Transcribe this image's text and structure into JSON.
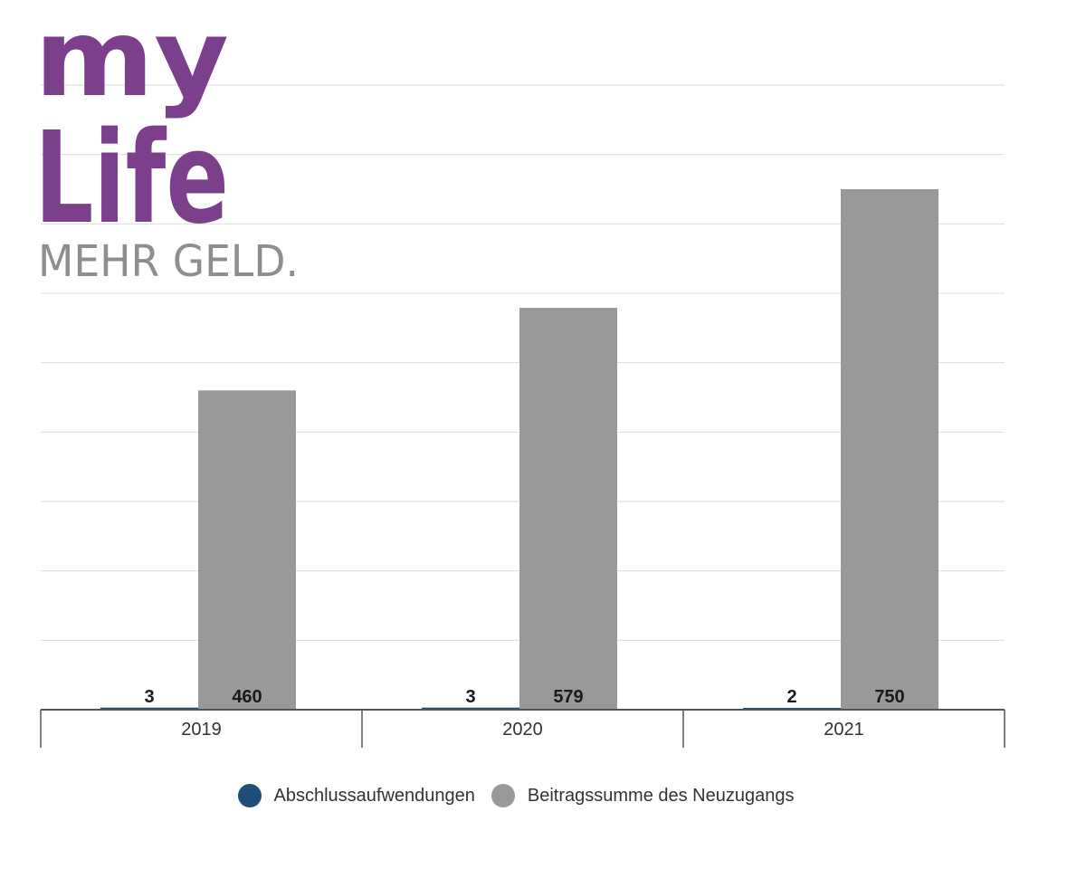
{
  "logo": {
    "line1": "my",
    "line2": "Life",
    "tagline": "MEHR GELD."
  },
  "chart_data": {
    "type": "bar",
    "categories": [
      "2019",
      "2020",
      "2021"
    ],
    "series": [
      {
        "name": "Abschlussaufwendungen",
        "values": [
          3,
          3,
          2
        ],
        "color": "#1f4e79"
      },
      {
        "name": "Beitragssumme des Neuzugangs",
        "values": [
          460,
          579,
          750
        ],
        "color": "#999999"
      }
    ],
    "ylim": [
      0,
      900
    ],
    "grid": true,
    "legend_position": "bottom"
  }
}
